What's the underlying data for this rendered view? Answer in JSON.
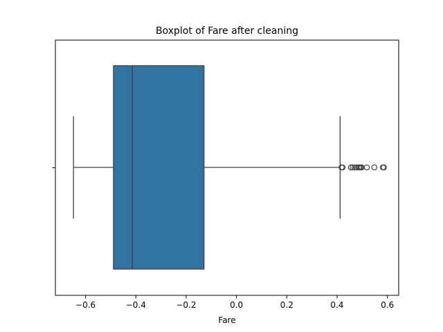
{
  "chart_data": {
    "type": "boxplot",
    "title": "Boxplot of Fare after cleaning",
    "xlabel": "Fare",
    "ylabel": "",
    "xlim": [
      -0.72,
      0.645
    ],
    "xticks": [
      -0.6,
      -0.4,
      -0.2,
      0.0,
      0.2,
      0.4,
      0.6
    ],
    "xtick_labels": [
      "−0.6",
      "−0.4",
      "−0.2",
      "0.0",
      "0.2",
      "0.4",
      "0.6"
    ],
    "grid": false,
    "box": {
      "whisker_low": -0.648,
      "q1": -0.489,
      "median": -0.414,
      "q3": -0.129,
      "whisker_high": 0.412,
      "outliers": [
        0.418,
        0.422,
        0.455,
        0.462,
        0.47,
        0.478,
        0.486,
        0.49,
        0.494,
        0.498,
        0.518,
        0.548,
        0.582,
        0.586
      ]
    },
    "colors": {
      "box_fill": "#3274a1",
      "lines": "#3f3f3f"
    }
  }
}
